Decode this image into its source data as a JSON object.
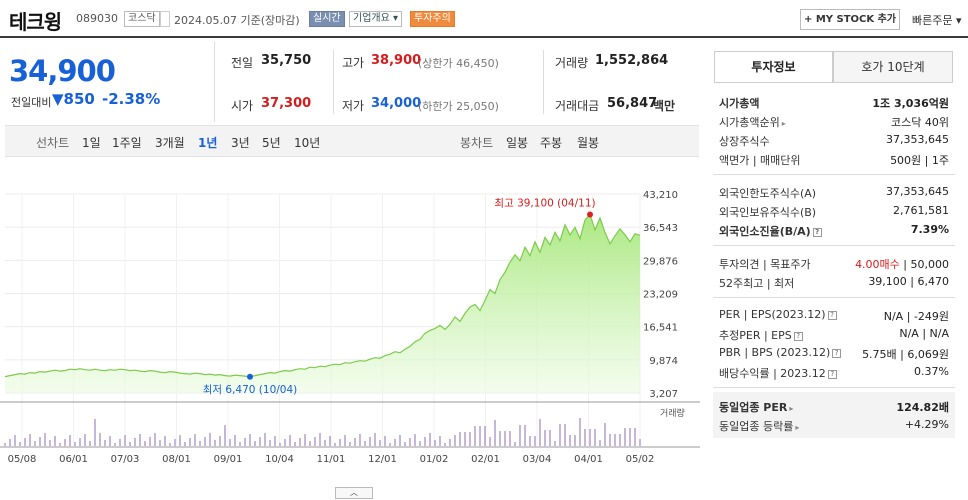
{
  "header": {
    "title": "테크윙",
    "code": "089030",
    "market": "코스닥",
    "date": "2024.05.07  기준(장마감)",
    "realtime": "실시간",
    "corp_info": "기업개요 ▾",
    "warning": "투자주의",
    "mystock_label": "+ MY STOCK 추가",
    "fast_order": "빠른주문 ▾"
  },
  "quote": {
    "price": "34,900",
    "change_label": "전일대비",
    "change": "▼850",
    "change_pct": "-2.38%",
    "prev_close_label": "전일",
    "prev_close": "35,750",
    "high_label": "고가",
    "high": "38,900",
    "upper_limit": "(상한가 46,450)",
    "volume_label": "거래량",
    "volume": "1,552,864",
    "open_label": "시가",
    "open": "37,300",
    "low_label": "저가",
    "low": "34,000",
    "lower_limit": "(하한가 25,050)",
    "amount_label": "거래대금",
    "amount": "56,847",
    "amount_unit": "백만"
  },
  "periods": {
    "line_label": "선차트",
    "line_items": [
      "1일",
      "1주일",
      "3개월",
      "1년",
      "3년",
      "5년",
      "10년"
    ],
    "selected": "1년",
    "candle_label": "봉차트",
    "candle_items": [
      "일봉",
      "주봉",
      "월봉"
    ]
  },
  "chart_data": {
    "type": "area",
    "x_ticks": [
      "05/08",
      "06/01",
      "07/03",
      "08/01",
      "09/01",
      "10/04",
      "11/01",
      "12/01",
      "01/02",
      "02/01",
      "03/04",
      "04/01",
      "05/02"
    ],
    "y_ticks": [
      "43,210",
      "36,543",
      "29,876",
      "23,209",
      "16,541",
      "9,874",
      "3,207"
    ],
    "ylim": [
      3207,
      43210
    ],
    "max_label": "최고 39,100 (04/11)",
    "min_label": "최저 6,470 (10/04)",
    "volume_label": "거래량",
    "series": [
      {
        "values": [
          6500,
          6700,
          6900,
          7100,
          7000,
          7300,
          7200,
          7500,
          7400,
          7600,
          7800,
          7600,
          7700,
          8000,
          7900,
          8100,
          7900,
          7800,
          8000,
          7800,
          7700,
          7900,
          7800,
          8000,
          7900,
          7700,
          7800,
          7600,
          7500,
          7700,
          7600,
          7400,
          7300,
          7500,
          7400,
          7200,
          7100,
          7000,
          7200,
          7100,
          6900,
          7000,
          6800,
          6900,
          6700,
          6600,
          6800,
          6700,
          6600,
          6470,
          6700,
          6900,
          7100,
          7300,
          7200,
          7500,
          7700,
          7600,
          7900,
          8100,
          8000,
          8400,
          8300,
          8600,
          8500,
          8800,
          9000,
          8900,
          9300,
          9200,
          9500,
          9700,
          9600,
          10000,
          10300,
          10200,
          10700,
          11000,
          11500,
          11300,
          12000,
          12600,
          13500,
          14000,
          15200,
          15800,
          16200,
          16800,
          16000,
          17000,
          18500,
          17600,
          19200,
          20500,
          21000,
          19800,
          21800,
          24000,
          23200,
          26000,
          27500,
          29500,
          31000,
          29800,
          32500,
          30800,
          33600,
          31500,
          34500,
          33000,
          35500,
          33800,
          37000,
          35000,
          36500,
          34200,
          38000,
          39100,
          36000,
          38400,
          35500,
          33200,
          34800,
          36200,
          35000,
          33600,
          35200,
          34900
        ]
      }
    ]
  },
  "invest_panel": {
    "tab_invest": "투자정보",
    "tab_quote": "호가 10단계",
    "market_cap_label": "시가총액",
    "market_cap": "1조 3,036억원",
    "cap_rank_label": "시가총액순위",
    "cap_rank": "코스닥 40위",
    "shares_label": "상장주식수",
    "shares": "37,353,645",
    "par_label": "액면가 | 매매단위",
    "par": "500원  |  1주",
    "foreign_limit_label": "외국인한도주식수(A)",
    "foreign_limit": "37,353,645",
    "foreign_hold_label": "외국인보유주식수(B)",
    "foreign_hold": "2,761,581",
    "foreign_ratio_label": "외국인소진율(B/A)",
    "foreign_ratio": "7.39%",
    "opinion_label": "투자의견 | 목표주가",
    "opinion": "4.00매수",
    "target": "50,000",
    "hi52_label": "52주최고 | 최저",
    "hi52": "39,100  |  6,470",
    "per_label": "PER | EPS(2023.12)",
    "per": "N/A  |  -249원",
    "est_per_label": "추정PER | EPS",
    "est_per": "N/A  |  N/A",
    "pbr_label": "PBR | BPS (2023.12)",
    "pbr": "5.75배  |  6,069원",
    "div_label": "배당수익률 | 2023.12",
    "div": "0.37%",
    "sector_per_label": "동일업종 PER",
    "sector_per": "124.82배",
    "sector_rate_label": "동일업종 등락률",
    "sector_rate": "+4.29%"
  }
}
